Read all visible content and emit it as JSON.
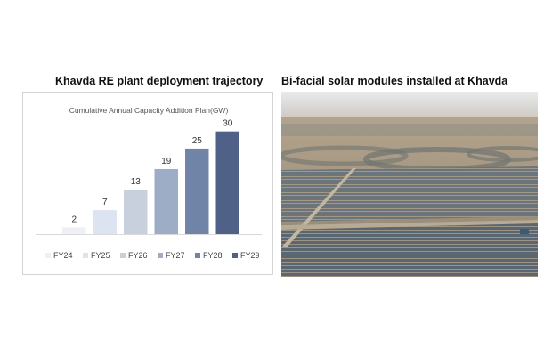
{
  "headings": {
    "left": "Khavda RE plant deployment trajectory",
    "right": "Bi-facial solar modules installed at Khavda"
  },
  "chart_data": {
    "type": "bar",
    "title": "Cumulative Annual Capacity Addition Plan(GW)",
    "categories": [
      "FY24",
      "FY25",
      "FY26",
      "FY27",
      "FY28",
      "FY29"
    ],
    "values": [
      2,
      7,
      13,
      19,
      25,
      30
    ],
    "data_labels": [
      "2",
      "7",
      "13",
      "19",
      "25",
      "30"
    ],
    "colors": [
      "#eef0f5",
      "#dde4f1",
      "#c8d0de",
      "#9eadc6",
      "#6f84a6",
      "#4f6186"
    ],
    "ylim": [
      0,
      32
    ],
    "grid": false,
    "legend_position": "bottom"
  },
  "photo": {
    "sky_color": "#dfe3e6",
    "ground_color": "#a89883",
    "panel_color": "#4e5a63",
    "road_color": "#b9ad97"
  }
}
